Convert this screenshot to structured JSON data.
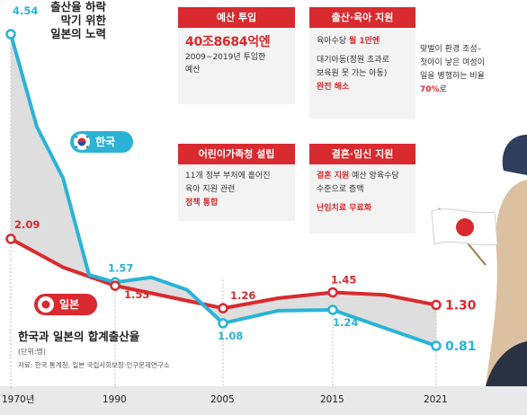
{
  "headline": {
    "lines": [
      "출산율 하락",
      "막기 위한",
      "일본의 노력"
    ]
  },
  "boxes": {
    "budget": {
      "header": "예산 투입",
      "amount": "40조8684억엔",
      "line1": "2009~2019년 투입한",
      "line2": "예산"
    },
    "birth_support": {
      "header": "출산·육아 지원",
      "line1_prefix": "육아수당 ",
      "line1_highlight": "월 1만엔",
      "line2": "대기아동(정원 초과로",
      "line3": "보육원 못 가는 아동)",
      "line4_highlight": "완전 해소"
    },
    "agency": {
      "header": "어린이가족청 설립",
      "line1": "11개 정부 부처에 흩어진",
      "line2": "육아 지원 관련",
      "line3_highlight": "정책 통합"
    },
    "marriage": {
      "header": "결혼·임신 지원",
      "line1_highlight": "결혼 지원",
      "line1_suffix": " 예산 양육수당",
      "line2": "수준으로 증액",
      "line3_highlight": "난임치료 무료화"
    }
  },
  "side_text": {
    "line1": "맞벌이 환경 조성–",
    "line2": "첫아이 낳은 여성이",
    "line3": "일을 병행하는 비율",
    "line4_highlight": "70%",
    "line4_suffix": "로"
  },
  "legend": {
    "korea_label": "한국",
    "japan_label": "일본"
  },
  "chart_title": {
    "title": "한국과 일본의 합계출산율",
    "unit": "(단위:명)",
    "source": "자료: 한국 통계청, 일본 국립사회보장·인구문제연구소"
  },
  "colors": {
    "korea": "#2ab3d6",
    "japan": "#d92a2f",
    "header_red": "#d92a2f",
    "gap_fill": "#d8d8d8",
    "box_bg": "#f3f3f3"
  },
  "chart_data": {
    "type": "line",
    "title": "한국과 일본의 합계출산율",
    "ylabel": "(단위:명)",
    "x_ticks": [
      "1970년",
      "1990",
      "2005",
      "2015",
      "2021"
    ],
    "series": [
      {
        "name": "한국",
        "color": "#2ab3d6",
        "points": [
          {
            "x": 1970,
            "y": 4.54,
            "label": "4.54"
          },
          {
            "x": 1975,
            "y": 3.43
          },
          {
            "x": 1980,
            "y": 2.82
          },
          {
            "x": 1985,
            "y": 1.66
          },
          {
            "x": 1990,
            "y": 1.57,
            "label": "1.57"
          },
          {
            "x": 1995,
            "y": 1.63
          },
          {
            "x": 2000,
            "y": 1.48
          },
          {
            "x": 2005,
            "y": 1.08,
            "label": "1.08"
          },
          {
            "x": 2010,
            "y": 1.23
          },
          {
            "x": 2015,
            "y": 1.24,
            "label": "1.24"
          },
          {
            "x": 2021,
            "y": 0.81,
            "label": "0.81"
          }
        ]
      },
      {
        "name": "일본",
        "color": "#d92a2f",
        "points": [
          {
            "x": 1970,
            "y": 2.09,
            "label": "2.09"
          },
          {
            "x": 1980,
            "y": 1.75
          },
          {
            "x": 1990,
            "y": 1.53,
            "label": "1.53"
          },
          {
            "x": 2005,
            "y": 1.26,
            "label": "1.26"
          },
          {
            "x": 2010,
            "y": 1.38
          },
          {
            "x": 2015,
            "y": 1.45,
            "label": "1.45"
          },
          {
            "x": 2018,
            "y": 1.42
          },
          {
            "x": 2021,
            "y": 1.3,
            "label": "1.30"
          }
        ]
      }
    ]
  }
}
